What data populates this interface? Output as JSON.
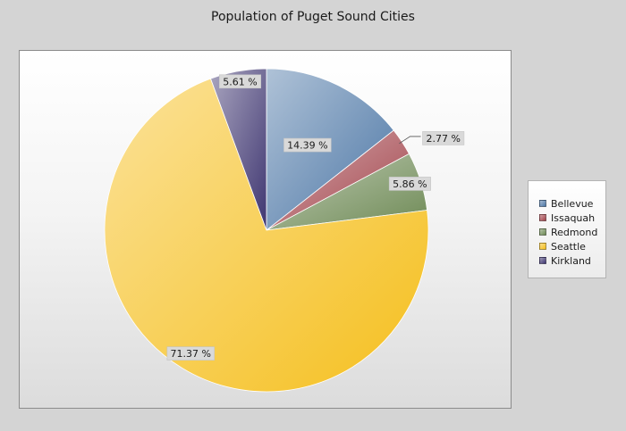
{
  "chart_data": {
    "type": "pie",
    "title": "Population of Puget Sound Cities",
    "categories": [
      "Bellevue",
      "Issaquah",
      "Redmond",
      "Seattle",
      "Kirkland"
    ],
    "values": [
      14.39,
      2.77,
      5.86,
      71.37,
      5.61
    ],
    "labels": [
      "14.39 %",
      "2.77 %",
      "5.86 %",
      "71.37 %",
      "5.61 %"
    ],
    "colors": [
      "#4d77a6",
      "#a2434a",
      "#6e8a55",
      "#f5bf1d",
      "#3f3671"
    ],
    "legend_placement": "right"
  }
}
